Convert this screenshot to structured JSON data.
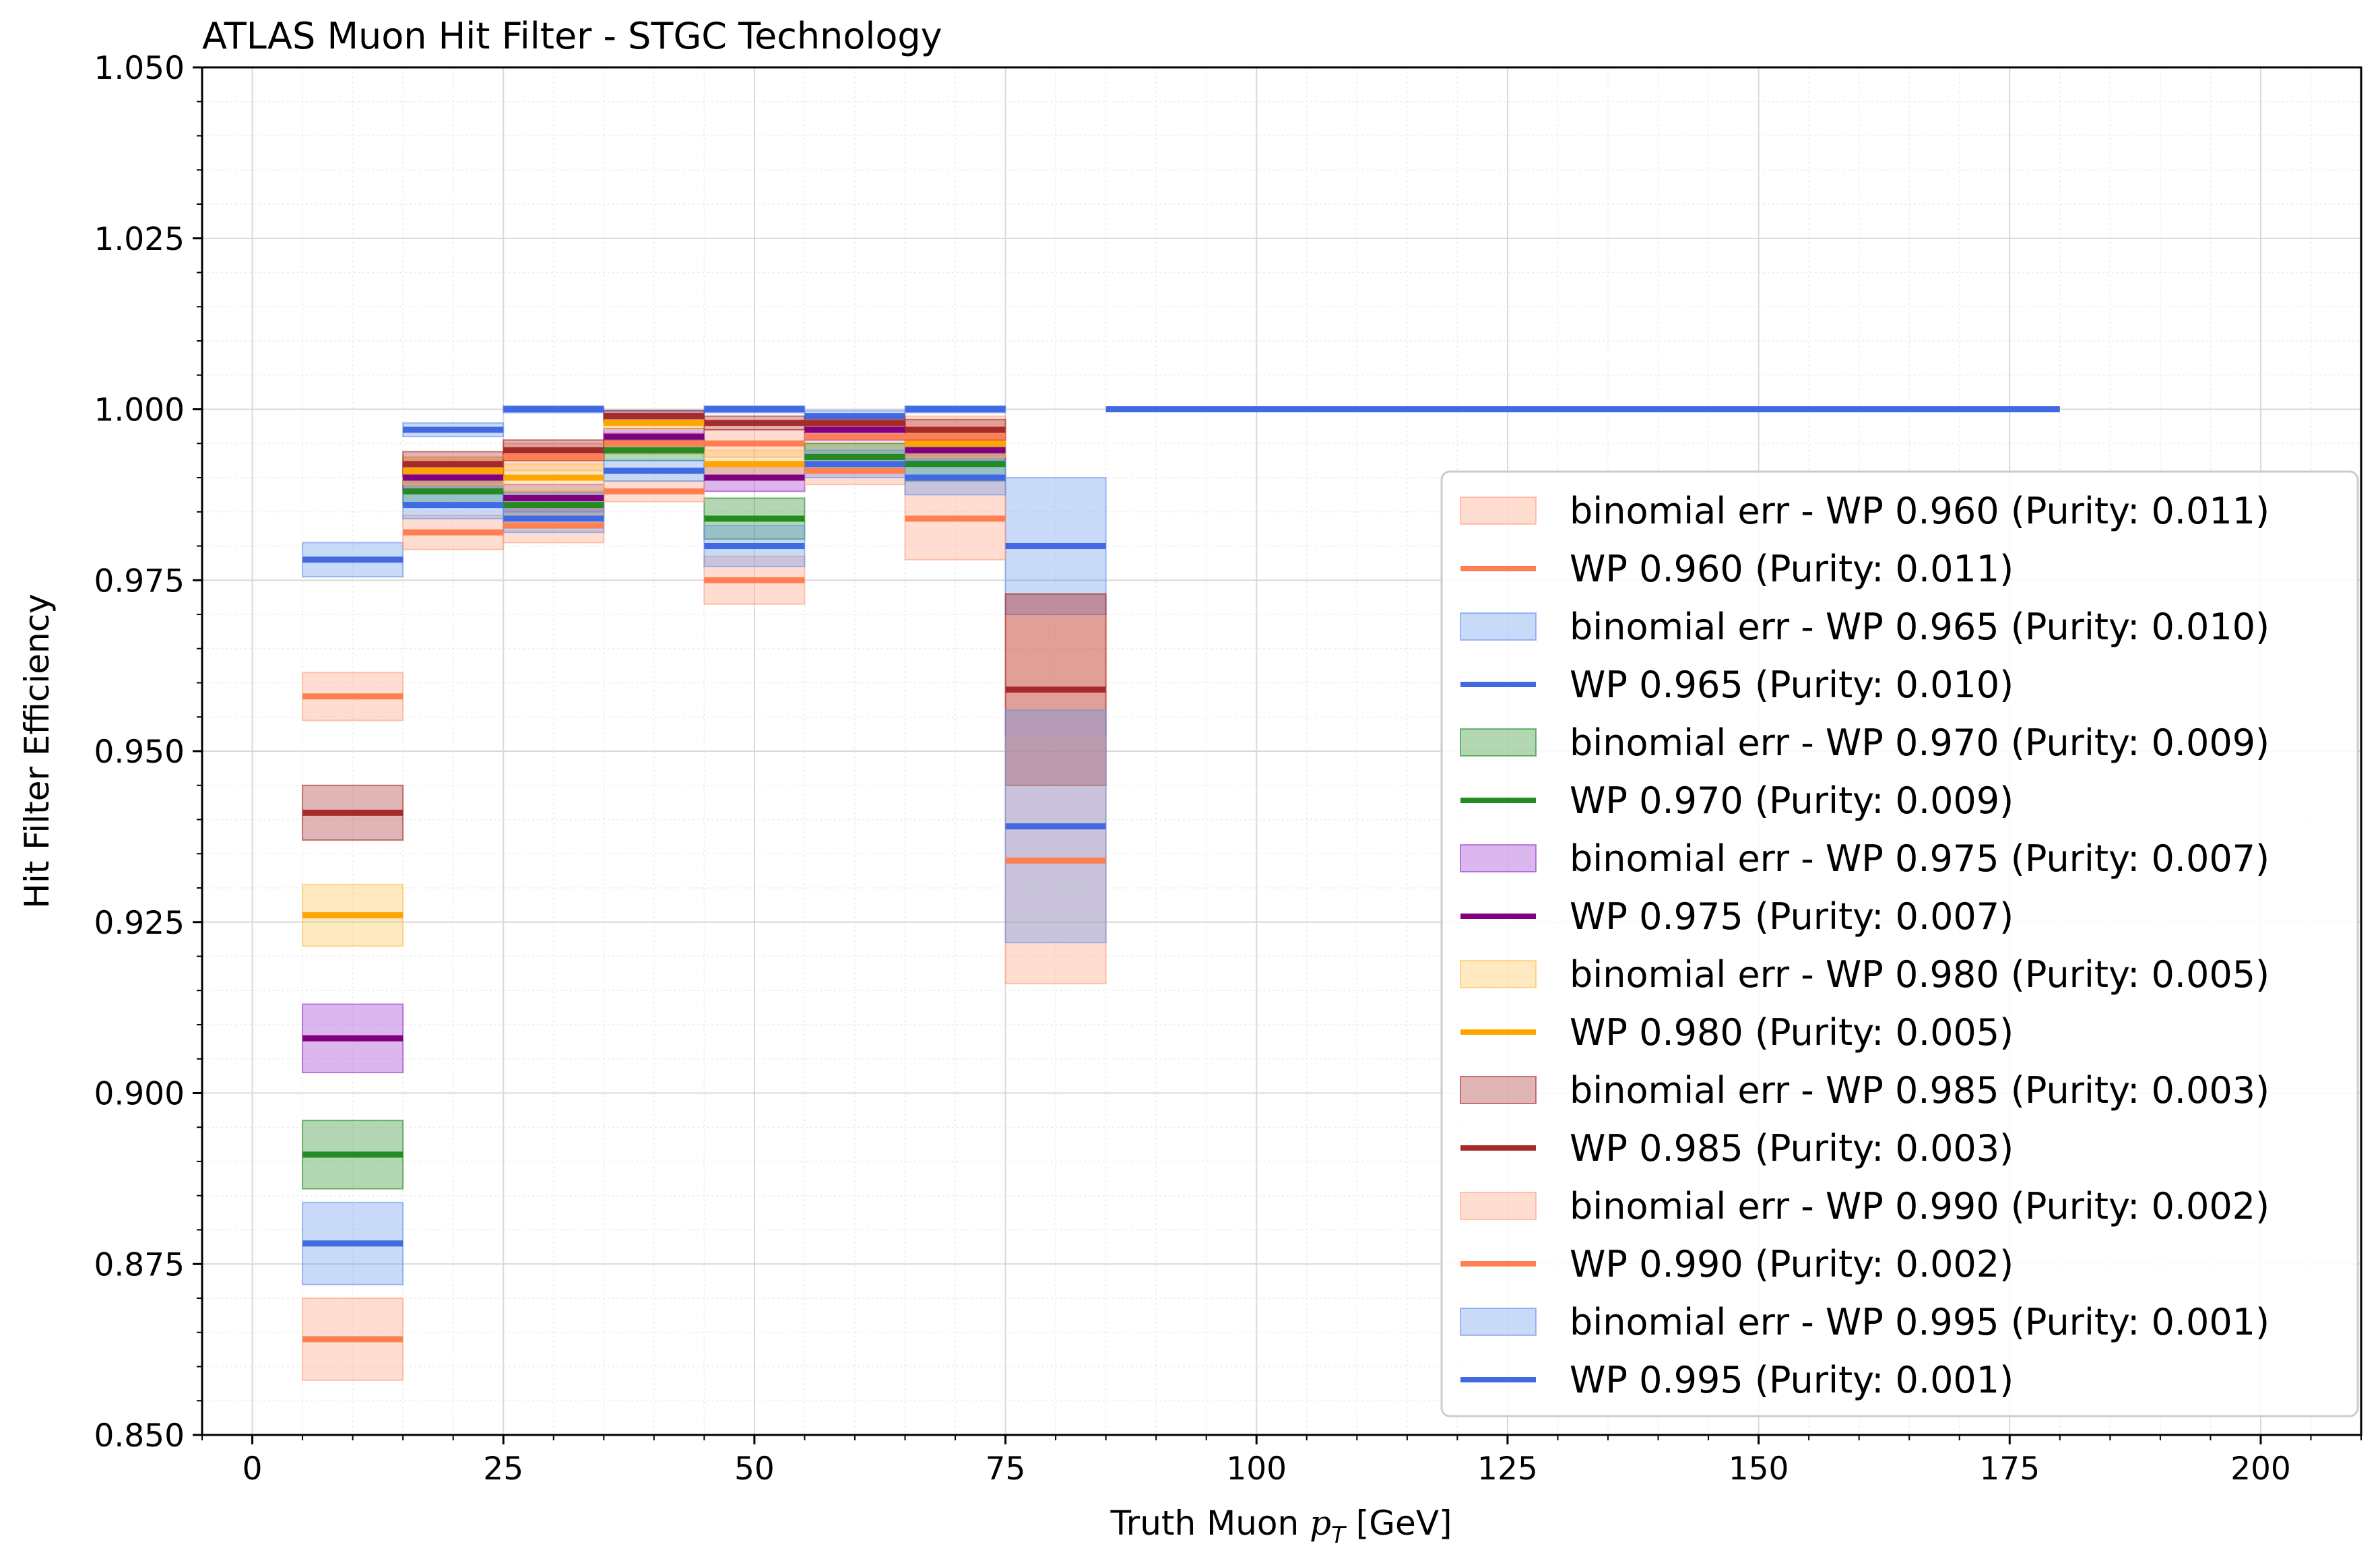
{
  "chart_data": {
    "type": "step-errorband",
    "title": "ATLAS Muon Hit Filter - STGC Technology",
    "xlabel_main": "Truth Muon ",
    "xlabel_math_p": "p",
    "xlabel_math_sub": "T",
    "xlabel_unit": " [GeV]",
    "ylabel": "Hit Filter Efficiency",
    "xlim": [
      -5,
      210
    ],
    "ylim": [
      0.85,
      1.05
    ],
    "xticks": [
      0,
      25,
      50,
      75,
      100,
      125,
      150,
      175,
      200
    ],
    "xtick_labels": [
      "0",
      "25",
      "50",
      "75",
      "100",
      "125",
      "150",
      "175",
      "200"
    ],
    "yticks": [
      0.85,
      0.875,
      0.9,
      0.925,
      0.95,
      0.975,
      1.0,
      1.025,
      1.05
    ],
    "ytick_labels": [
      "0.850",
      "0.875",
      "0.900",
      "0.925",
      "0.950",
      "0.975",
      "1.000",
      "1.025",
      "1.050"
    ],
    "grid": true,
    "legend_position": "lower-right",
    "legend": [
      "binomial err - WP 0.960 (Purity: 0.011)",
      "WP 0.960 (Purity: 0.011)",
      "binomial err - WP 0.965 (Purity: 0.010)",
      "WP 0.965 (Purity: 0.010)",
      "binomial err - WP 0.970 (Purity: 0.009)",
      "WP 0.970 (Purity: 0.009)",
      "binomial err - WP 0.975 (Purity: 0.007)",
      "WP 0.975 (Purity: 0.007)",
      "binomial err - WP 0.980 (Purity: 0.005)",
      "WP 0.980 (Purity: 0.005)",
      "binomial err - WP 0.985 (Purity: 0.003)",
      "WP 0.985 (Purity: 0.003)",
      "binomial err - WP 0.990 (Purity: 0.002)",
      "WP 0.990 (Purity: 0.002)",
      "binomial err - WP 0.995 (Purity: 0.001)",
      "WP 0.995 (Purity: 0.001)"
    ],
    "series": [
      {
        "name": "WP 0.960 (Purity: 0.011)",
        "color": "#ff7f50",
        "band_color": "#ffa07a",
        "bins": [
          [
            5,
            15
          ],
          [
            15,
            25
          ],
          [
            25,
            35
          ],
          [
            35,
            45
          ],
          [
            45,
            55
          ],
          [
            55,
            65
          ],
          [
            65,
            75
          ],
          [
            75,
            85
          ]
        ],
        "values": [
          0.958,
          0.991,
          0.993,
          0.995,
          0.995,
          0.996,
          0.996,
          0.959
        ],
        "err": [
          0.0035,
          0.002,
          0.002,
          0.0015,
          0.002,
          0.0025,
          0.003,
          0.014
        ]
      },
      {
        "name": "WP 0.965 (Purity: 0.010)",
        "color": "#4169e1",
        "band_color": "#6495ed",
        "bins": [
          [
            5,
            15
          ],
          [
            15,
            25
          ],
          [
            25,
            35
          ],
          [
            35,
            45
          ],
          [
            45,
            55
          ],
          [
            55,
            65
          ],
          [
            65,
            75
          ],
          [
            75,
            85
          ]
        ],
        "values": [
          0.978,
          0.997,
          1.0,
          0.999,
          1.0,
          0.999,
          1.0,
          0.98
        ],
        "err": [
          0.0025,
          0.001,
          0.0005,
          0.0008,
          0.0005,
          0.0008,
          0.0005,
          0.01
        ]
      },
      {
        "name": "WP 0.970 (Purity: 0.009)",
        "color": "#228b22",
        "band_color": "#228b22",
        "bins": [
          [
            5,
            15
          ],
          [
            15,
            25
          ],
          [
            25,
            35
          ],
          [
            35,
            45
          ],
          [
            45,
            55
          ],
          [
            55,
            65
          ],
          [
            65,
            75
          ]
        ],
        "values": [
          0.891,
          0.988,
          0.986,
          0.994,
          0.984,
          0.993,
          0.992
        ],
        "err": [
          0.005,
          0.002,
          0.002,
          0.0015,
          0.003,
          0.002,
          0.0025
        ]
      },
      {
        "name": "WP 0.975 (Purity: 0.007)",
        "color": "#800080",
        "band_color": "#9932cc",
        "bins": [
          [
            5,
            15
          ],
          [
            15,
            25
          ],
          [
            25,
            35
          ],
          [
            35,
            45
          ],
          [
            45,
            55
          ],
          [
            55,
            65
          ],
          [
            65,
            75
          ]
        ],
        "values": [
          0.908,
          0.99,
          0.987,
          0.996,
          0.99,
          0.997,
          0.994
        ],
        "err": [
          0.005,
          0.002,
          0.002,
          0.0012,
          0.002,
          0.0015,
          0.002
        ]
      },
      {
        "name": "WP 0.980 (Purity: 0.005)",
        "color": "#ffa500",
        "band_color": "#ffc04d",
        "bins": [
          [
            5,
            15
          ],
          [
            15,
            25
          ],
          [
            25,
            35
          ],
          [
            35,
            45
          ],
          [
            45,
            55
          ],
          [
            55,
            65
          ],
          [
            65,
            75
          ]
        ],
        "values": [
          0.926,
          0.991,
          0.99,
          0.998,
          0.992,
          0.998,
          0.995
        ],
        "err": [
          0.0045,
          0.002,
          0.002,
          0.001,
          0.002,
          0.0012,
          0.002
        ]
      },
      {
        "name": "WP 0.985 (Purity: 0.003)",
        "color": "#a52a2a",
        "band_color": "#a52a2a",
        "bins": [
          [
            5,
            15
          ],
          [
            15,
            25
          ],
          [
            25,
            35
          ],
          [
            35,
            45
          ],
          [
            45,
            55
          ],
          [
            55,
            65
          ],
          [
            65,
            75
          ],
          [
            75,
            85
          ]
        ],
        "values": [
          0.941,
          0.992,
          0.994,
          0.999,
          0.998,
          0.998,
          0.997,
          0.959
        ],
        "err": [
          0.004,
          0.0018,
          0.0015,
          0.0008,
          0.001,
          0.001,
          0.0015,
          0.014
        ]
      },
      {
        "name": "WP 0.990 (Purity: 0.002)",
        "color": "#ff7f50",
        "band_color": "#ffa07a",
        "bins": [
          [
            5,
            15
          ],
          [
            15,
            25
          ],
          [
            25,
            35
          ],
          [
            35,
            45
          ],
          [
            45,
            55
          ],
          [
            55,
            65
          ],
          [
            65,
            75
          ],
          [
            75,
            85
          ]
        ],
        "values": [
          0.864,
          0.982,
          0.983,
          0.988,
          0.975,
          0.991,
          0.984,
          0.934
        ],
        "err": [
          0.006,
          0.0025,
          0.0025,
          0.0015,
          0.0035,
          0.002,
          0.006,
          0.018
        ]
      },
      {
        "name": "WP 0.995 (Purity: 0.001)",
        "color": "#4169e1",
        "band_color": "#6495ed",
        "bins": [
          [
            5,
            15
          ],
          [
            15,
            25
          ],
          [
            25,
            35
          ],
          [
            35,
            45
          ],
          [
            45,
            55
          ],
          [
            55,
            65
          ],
          [
            65,
            75
          ],
          [
            75,
            85
          ],
          [
            85,
            180
          ]
        ],
        "values": [
          0.878,
          0.986,
          0.984,
          0.991,
          0.98,
          0.992,
          0.99,
          0.939,
          1.0
        ],
        "err": [
          0.006,
          0.002,
          0.002,
          0.0015,
          0.003,
          0.002,
          0.0025,
          0.017,
          0.0
        ]
      }
    ],
    "legend_entries": [
      {
        "kind": "band",
        "band_color": "#ffa07a",
        "label_index": 0
      },
      {
        "kind": "line",
        "color": "#ff7f50",
        "label_index": 1
      },
      {
        "kind": "band",
        "band_color": "#6495ed",
        "label_index": 2
      },
      {
        "kind": "line",
        "color": "#4169e1",
        "label_index": 3
      },
      {
        "kind": "band",
        "band_color": "#228b22",
        "label_index": 4
      },
      {
        "kind": "line",
        "color": "#228b22",
        "label_index": 5
      },
      {
        "kind": "band",
        "band_color": "#9932cc",
        "label_index": 6
      },
      {
        "kind": "line",
        "color": "#800080",
        "label_index": 7
      },
      {
        "kind": "band",
        "band_color": "#ffc04d",
        "label_index": 8
      },
      {
        "kind": "line",
        "color": "#ffa500",
        "label_index": 9
      },
      {
        "kind": "band",
        "band_color": "#a52a2a",
        "label_index": 10
      },
      {
        "kind": "line",
        "color": "#a52a2a",
        "label_index": 11
      },
      {
        "kind": "band",
        "band_color": "#ffa07a",
        "label_index": 12
      },
      {
        "kind": "line",
        "color": "#ff7f50",
        "label_index": 13
      },
      {
        "kind": "band",
        "band_color": "#6495ed",
        "label_index": 14
      },
      {
        "kind": "line",
        "color": "#4169e1",
        "label_index": 15
      }
    ]
  }
}
